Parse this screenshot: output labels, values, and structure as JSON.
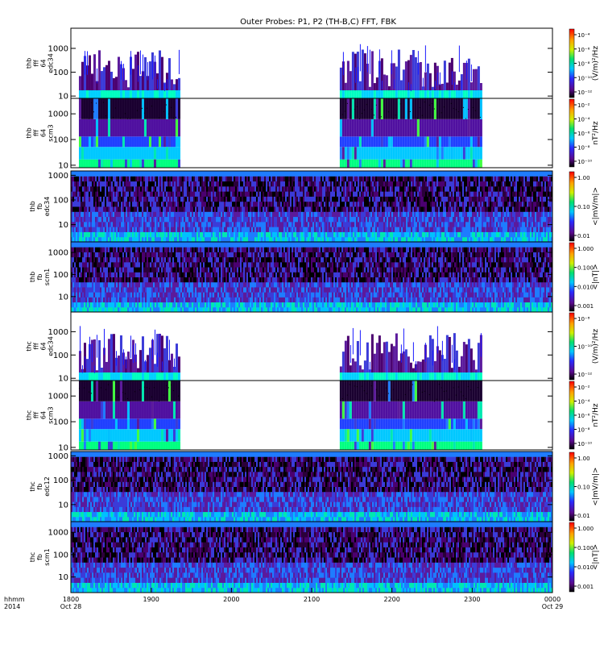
{
  "chart_data": {
    "type": "heatmap",
    "title": "Outer Probes: P1, P2 (TH-B,C) FFT, FBK",
    "x_axis": {
      "label_lines": [
        "hhmm",
        "2014"
      ],
      "ticks": [
        {
          "value": 1800,
          "label": "1800",
          "sub": "Oct 28"
        },
        {
          "value": 1900,
          "label": "1900",
          "sub": ""
        },
        {
          "value": 2000,
          "label": "2000",
          "sub": ""
        },
        {
          "value": 2100,
          "label": "2100",
          "sub": ""
        },
        {
          "value": 2200,
          "label": "2200",
          "sub": ""
        },
        {
          "value": 2300,
          "label": "2300",
          "sub": ""
        },
        {
          "value": 2400,
          "label": "0000",
          "sub": "Oct 29"
        }
      ],
      "range": [
        1800,
        2400
      ]
    },
    "panels": [
      {
        "id": "thb-fff-e",
        "ylabel_lines": [
          "thb",
          "fff",
          "64",
          "edc34"
        ],
        "y_ticks": [
          "1000",
          "100",
          "10"
        ],
        "yrange": [
          8,
          7000
        ],
        "colorbar_label": "(V/m)²/Hz",
        "colorbar_ticks": [
          "10⁻⁴",
          "10⁻⁶",
          "10⁻⁸",
          "10⁻¹⁰",
          "10⁻¹²"
        ],
        "data_intervals": [
          [
            1810,
            1935
          ],
          [
            2135,
            2310
          ]
        ],
        "kind": "spiky"
      },
      {
        "id": "thb-fff-b",
        "ylabel_lines": [
          "thb",
          "fff",
          "64",
          "scm3"
        ],
        "y_ticks": [
          "1000",
          "100",
          "10"
        ],
        "yrange": [
          8,
          4000
        ],
        "colorbar_label": "nT²/Hz",
        "colorbar_ticks": [
          "10⁻²",
          "10⁻⁴",
          "10⁻⁶",
          "10⁻⁸",
          "10⁻¹⁰"
        ],
        "data_intervals": [
          [
            1810,
            1935
          ],
          [
            2135,
            2310
          ]
        ],
        "kind": "smooth"
      },
      {
        "id": "thb-fb-e",
        "ylabel_lines": [
          "thb",
          "fb",
          "edc34"
        ],
        "y_ticks": [
          "1000",
          "100",
          "10"
        ],
        "yrange": [
          2,
          1500
        ],
        "colorbar_label": "<|mV/m|>",
        "colorbar_ticks": [
          "1.00",
          "0.10",
          "0.01"
        ],
        "data_intervals": [
          [
            1800,
            2400
          ]
        ],
        "kind": "bands"
      },
      {
        "id": "thb-fb-b",
        "ylabel_lines": [
          "thb",
          "fb",
          "scm1"
        ],
        "y_ticks": [
          "1000",
          "100",
          "10"
        ],
        "yrange": [
          2,
          3000
        ],
        "colorbar_label": "<|nT|>",
        "colorbar_ticks": [
          "1.000",
          "0.100",
          "0.010",
          "0.001"
        ],
        "data_intervals": [
          [
            1800,
            2400
          ]
        ],
        "kind": "bands"
      },
      {
        "id": "thc-fff-e",
        "ylabel_lines": [
          "thc",
          "fff",
          "64",
          "edc34"
        ],
        "y_ticks": [
          "1000",
          "100",
          "10"
        ],
        "yrange": [
          8,
          7000
        ],
        "colorbar_label": "(V/m)²/Hz",
        "colorbar_ticks": [
          "10⁻⁸",
          "10⁻¹⁰",
          "10⁻¹²"
        ],
        "data_intervals": [
          [
            1810,
            1935
          ],
          [
            2135,
            2310
          ]
        ],
        "kind": "spiky"
      },
      {
        "id": "thc-fff-b",
        "ylabel_lines": [
          "thc",
          "fff",
          "64",
          "scm3"
        ],
        "y_ticks": [
          "1000",
          "100",
          "10"
        ],
        "yrange": [
          8,
          4000
        ],
        "colorbar_label": "nT²/Hz",
        "colorbar_ticks": [
          "10⁻²",
          "10⁻⁴",
          "10⁻⁶",
          "10⁻⁸",
          "10⁻¹⁰"
        ],
        "data_intervals": [
          [
            1810,
            1935
          ],
          [
            2135,
            2310
          ]
        ],
        "kind": "smooth"
      },
      {
        "id": "thc-fb-e",
        "ylabel_lines": [
          "thc",
          "fb",
          "edc12"
        ],
        "y_ticks": [
          "1000",
          "100",
          "10"
        ],
        "yrange": [
          2,
          1500
        ],
        "colorbar_label": "<|mV/m|>",
        "colorbar_ticks": [
          "1.00",
          "0.10",
          "0.01"
        ],
        "data_intervals": [
          [
            1800,
            2400
          ]
        ],
        "kind": "bands"
      },
      {
        "id": "thc-fb-b",
        "ylabel_lines": [
          "thc",
          "fb",
          "scm1"
        ],
        "y_ticks": [
          "1000",
          "100",
          "10"
        ],
        "yrange": [
          2,
          3000
        ],
        "colorbar_label": "<|nT|>",
        "colorbar_ticks": [
          "1.000",
          "0.100",
          "0.010",
          "0.001"
        ],
        "data_intervals": [
          [
            1800,
            2400
          ]
        ],
        "kind": "bands"
      }
    ]
  }
}
